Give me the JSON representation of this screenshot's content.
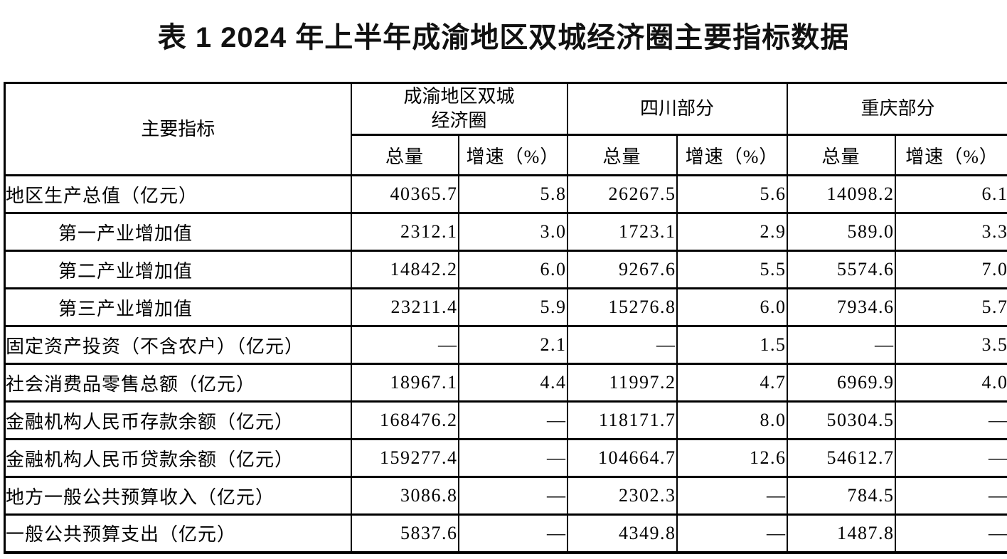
{
  "title": "表 1 2024 年上半年成渝地区双城经济圈主要指标数据",
  "table": {
    "indicator_header": "主要指标",
    "groups": [
      "成渝地区双城\n经济圈",
      "四川部分",
      "重庆部分"
    ],
    "subheaders": [
      "总量",
      "增速（%）"
    ],
    "rows": [
      {
        "label": "地区生产总值（亿元）",
        "indent": false,
        "values": [
          "40365.7",
          "5.8",
          "26267.5",
          "5.6",
          "14098.2",
          "6.1"
        ]
      },
      {
        "label": "第一产业增加值",
        "indent": true,
        "values": [
          "2312.1",
          "3.0",
          "1723.1",
          "2.9",
          "589.0",
          "3.3"
        ]
      },
      {
        "label": "第二产业增加值",
        "indent": true,
        "values": [
          "14842.2",
          "6.0",
          "9267.6",
          "5.5",
          "5574.6",
          "7.0"
        ]
      },
      {
        "label": "第三产业增加值",
        "indent": true,
        "values": [
          "23211.4",
          "5.9",
          "15276.8",
          "6.0",
          "7934.6",
          "5.7"
        ]
      },
      {
        "label": "固定资产投资（不含农户）（亿元）",
        "indent": false,
        "values": [
          "—",
          "2.1",
          "—",
          "1.5",
          "—",
          "3.5"
        ]
      },
      {
        "label": "社会消费品零售总额（亿元）",
        "indent": false,
        "values": [
          "18967.1",
          "4.4",
          "11997.2",
          "4.7",
          "6969.9",
          "4.0"
        ]
      },
      {
        "label": "金融机构人民币存款余额（亿元）",
        "indent": false,
        "values": [
          "168476.2",
          "—",
          "118171.7",
          "8.0",
          "50304.5",
          "—"
        ]
      },
      {
        "label": "金融机构人民币贷款余额（亿元）",
        "indent": false,
        "values": [
          "159277.4",
          "—",
          "104664.7",
          "12.6",
          "54612.7",
          "—"
        ]
      },
      {
        "label": "地方一般公共预算收入（亿元）",
        "indent": false,
        "values": [
          "3086.8",
          "—",
          "2302.3",
          "—",
          "784.5",
          "—"
        ]
      },
      {
        "label": "一般公共预算支出（亿元）",
        "indent": false,
        "values": [
          "5837.6",
          "—",
          "4349.8",
          "—",
          "1487.8",
          "—"
        ]
      }
    ]
  }
}
